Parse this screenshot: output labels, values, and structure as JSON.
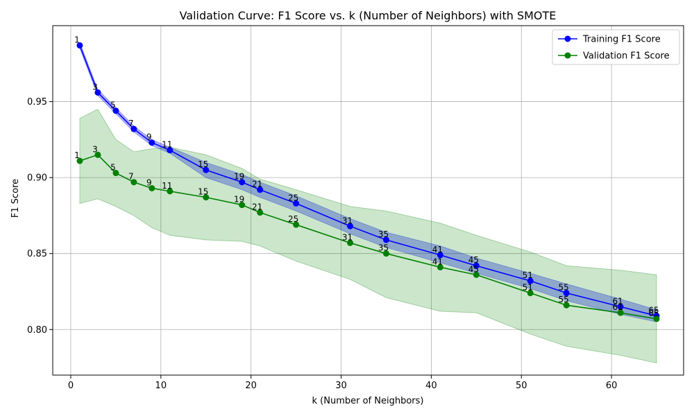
{
  "chart_data": {
    "type": "line",
    "title": "Validation Curve: F1 Score vs. k (Number of Neighbors) with SMOTE",
    "xlabel": "k (Number of Neighbors)",
    "ylabel": "F1 Score",
    "xlim": [
      -2,
      68
    ],
    "ylim": [
      0.77,
      1.0
    ],
    "xticks": [
      0,
      10,
      20,
      30,
      40,
      50,
      60
    ],
    "yticks": [
      0.8,
      0.85,
      0.9,
      0.95
    ],
    "xtick_labels": [
      "0",
      "10",
      "20",
      "30",
      "40",
      "50",
      "60"
    ],
    "ytick_labels": [
      "0.80",
      "0.85",
      "0.90",
      "0.95"
    ],
    "grid": true,
    "legend_position": "top-right",
    "x": [
      1,
      3,
      5,
      7,
      9,
      11,
      15,
      19,
      21,
      25,
      31,
      35,
      41,
      45,
      51,
      55,
      61,
      65
    ],
    "point_labels": [
      "1",
      "3",
      "5",
      "7",
      "9",
      "11",
      "15",
      "19",
      "21",
      "25",
      "31",
      "35",
      "41",
      "45",
      "51",
      "55",
      "61",
      "65"
    ],
    "series": [
      {
        "name": "Training F1 Score",
        "color": "#0000ff",
        "band_color": "#0000ff",
        "values": [
          0.987,
          0.956,
          0.944,
          0.932,
          0.923,
          0.918,
          0.905,
          0.897,
          0.892,
          0.883,
          0.868,
          0.859,
          0.849,
          0.842,
          0.832,
          0.824,
          0.815,
          0.809
        ],
        "upper": [
          0.989,
          0.958,
          0.946,
          0.934,
          0.925,
          0.92,
          0.91,
          0.902,
          0.897,
          0.888,
          0.873,
          0.864,
          0.855,
          0.847,
          0.837,
          0.83,
          0.82,
          0.813
        ],
        "lower": [
          0.985,
          0.954,
          0.942,
          0.93,
          0.921,
          0.916,
          0.9,
          0.892,
          0.887,
          0.878,
          0.863,
          0.854,
          0.844,
          0.837,
          0.827,
          0.819,
          0.81,
          0.805
        ]
      },
      {
        "name": "Validation F1 Score",
        "color": "#008000",
        "band_color": "#008000",
        "values": [
          0.911,
          0.915,
          0.903,
          0.897,
          0.893,
          0.891,
          0.887,
          0.882,
          0.877,
          0.869,
          0.857,
          0.85,
          0.841,
          0.836,
          0.824,
          0.816,
          0.811,
          0.807
        ],
        "upper": [
          0.939,
          0.945,
          0.925,
          0.917,
          0.919,
          0.92,
          0.915,
          0.906,
          0.899,
          0.892,
          0.881,
          0.878,
          0.87,
          0.862,
          0.851,
          0.842,
          0.839,
          0.836
        ],
        "lower": [
          0.883,
          0.886,
          0.881,
          0.875,
          0.867,
          0.862,
          0.859,
          0.858,
          0.855,
          0.845,
          0.833,
          0.821,
          0.812,
          0.811,
          0.797,
          0.789,
          0.783,
          0.778
        ]
      }
    ]
  }
}
